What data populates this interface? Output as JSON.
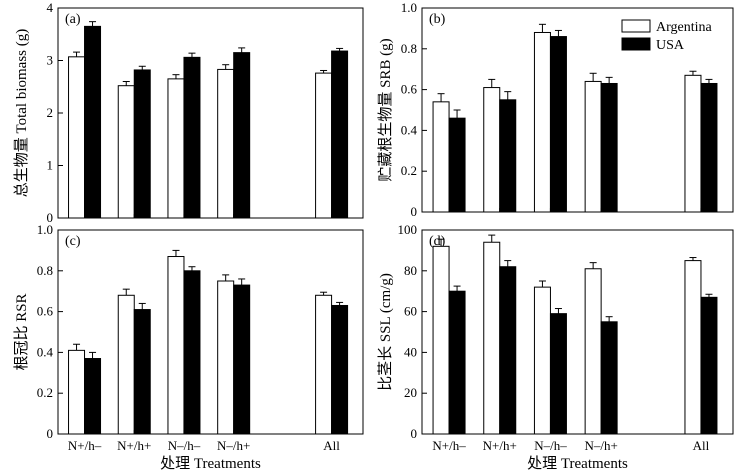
{
  "legend": {
    "series_a": "Argentina",
    "series_b": "USA"
  },
  "colors": {
    "argentina": "#ffffff",
    "usa": "#000000",
    "axis": "#000000"
  },
  "chart_data": [
    {
      "id": "a",
      "panel_label": "(a)",
      "type": "bar",
      "ylabel": "总生物量  Total biomass (g)",
      "xlabel": "",
      "ylim": [
        0,
        4
      ],
      "yticks": [
        "0",
        "1",
        "2",
        "3",
        "4"
      ],
      "categories": [
        "N+/h–",
        "N+/h+",
        "N–/h–",
        "N–/h+",
        "All"
      ],
      "series": [
        {
          "name": "Argentina",
          "values": [
            3.07,
            2.52,
            2.65,
            2.83,
            2.76
          ],
          "errors": [
            0.09,
            0.08,
            0.08,
            0.09,
            0.05
          ]
        },
        {
          "name": "USA",
          "values": [
            3.65,
            2.82,
            3.06,
            3.15,
            3.18
          ],
          "errors": [
            0.09,
            0.07,
            0.08,
            0.09,
            0.05
          ]
        }
      ],
      "grid": false,
      "legend": "none"
    },
    {
      "id": "b",
      "panel_label": "(b)",
      "type": "bar",
      "ylabel": "贮藏根生物量 SRB (g)",
      "xlabel": "",
      "ylim": [
        0,
        1.0
      ],
      "yticks": [
        "0",
        "0.2",
        "0.4",
        "0.6",
        "0.8",
        "1.0"
      ],
      "categories": [
        "N+/h–",
        "N+/h+",
        "N–/h–",
        "N–/h+",
        "All"
      ],
      "series": [
        {
          "name": "Argentina",
          "values": [
            0.54,
            0.61,
            0.88,
            0.64,
            0.67
          ],
          "errors": [
            0.04,
            0.04,
            0.04,
            0.04,
            0.02
          ]
        },
        {
          "name": "USA",
          "values": [
            0.46,
            0.55,
            0.86,
            0.63,
            0.63
          ],
          "errors": [
            0.04,
            0.04,
            0.03,
            0.03,
            0.02
          ]
        }
      ],
      "grid": false,
      "legend": "top-right"
    },
    {
      "id": "c",
      "panel_label": "(c)",
      "type": "bar",
      "ylabel": "根冠比 RSR",
      "xlabel": "处理 Treatments",
      "ylim": [
        0,
        1.0
      ],
      "yticks": [
        "0",
        "0.2",
        "0.4",
        "0.6",
        "0.8",
        "1.0"
      ],
      "categories": [
        "N+/h–",
        "N+/h+",
        "N–/h–",
        "N–/h+",
        "All"
      ],
      "series": [
        {
          "name": "Argentina",
          "values": [
            0.41,
            0.68,
            0.87,
            0.75,
            0.68
          ],
          "errors": [
            0.03,
            0.03,
            0.03,
            0.03,
            0.015
          ]
        },
        {
          "name": "USA",
          "values": [
            0.37,
            0.61,
            0.8,
            0.73,
            0.63
          ],
          "errors": [
            0.03,
            0.03,
            0.02,
            0.03,
            0.015
          ]
        }
      ],
      "grid": false,
      "legend": "none"
    },
    {
      "id": "d",
      "panel_label": "(d)",
      "type": "bar",
      "ylabel": "比茎长 SSL (cm/g)",
      "xlabel": "处理 Treatments",
      "ylim": [
        0,
        100
      ],
      "yticks": [
        "0",
        "20",
        "40",
        "60",
        "80",
        "100"
      ],
      "categories": [
        "N+/h–",
        "N+/h+",
        "N–/h–",
        "N–/h+",
        "All"
      ],
      "series": [
        {
          "name": "Argentina",
          "values": [
            92,
            94,
            72,
            81,
            85
          ],
          "errors": [
            3.5,
            3.5,
            3,
            3,
            1.5
          ]
        },
        {
          "name": "USA",
          "values": [
            70,
            82,
            59,
            55,
            67
          ],
          "errors": [
            2.5,
            3,
            2.5,
            2.5,
            1.5
          ]
        }
      ],
      "grid": false,
      "legend": "none"
    }
  ]
}
